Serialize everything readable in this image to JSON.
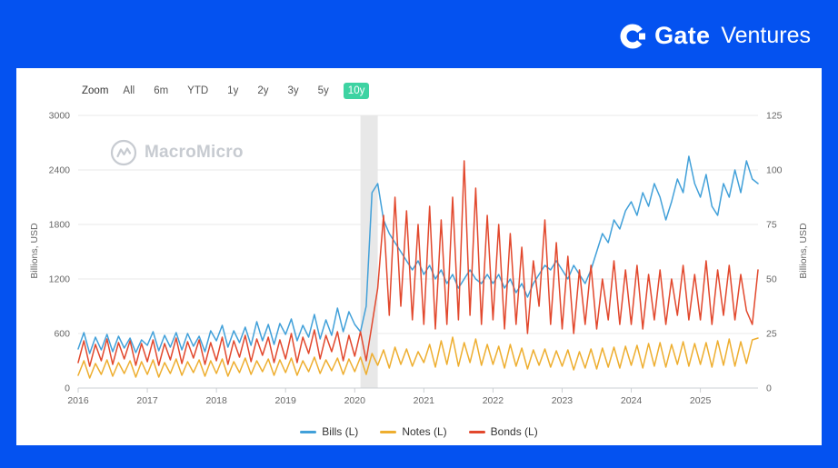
{
  "colors": {
    "brand_blue": "#0452f0",
    "active_zoom_green": "#3ed3a2",
    "grid": "#e8e8e8",
    "axis_text": "#666666"
  },
  "header": {
    "brand": "Gate",
    "brand_suffix": "Ventures"
  },
  "toolbar": {
    "zoom_label": "Zoom",
    "options": [
      "All",
      "6m",
      "YTD",
      "1y",
      "2y",
      "3y",
      "5y",
      "10y"
    ],
    "active": "10y"
  },
  "watermark": {
    "text": "MacroMicro"
  },
  "chart_data": {
    "type": "line",
    "title": "",
    "ylabel_left": "Billions, USD",
    "ylabel_right": "Billions, USD",
    "ylim_left": [
      0,
      3000
    ],
    "yticks_left": [
      0,
      600,
      1200,
      1800,
      2400,
      3000
    ],
    "ylim_right": [
      0,
      125
    ],
    "yticks_right": [
      0,
      25,
      50,
      75,
      100,
      125
    ],
    "x_frequency": "monthly",
    "x_start": "2016-01",
    "x_end": "2025-11",
    "x_tick_years": [
      2016,
      2017,
      2018,
      2019,
      2020,
      2021,
      2022,
      2023,
      2024,
      2025
    ],
    "grid": true,
    "legend_position": "bottom-center",
    "shaded_region": {
      "label": "2020 recession band",
      "from_month_index": 49,
      "to_month_index": 52,
      "color": "#e2e2e2"
    },
    "series": [
      {
        "id": "bills",
        "name": "Bills (L)",
        "color": "#41a0d9",
        "values": [
          430,
          610,
          380,
          560,
          420,
          590,
          400,
          570,
          440,
          550,
          390,
          530,
          470,
          620,
          410,
          580,
          450,
          610,
          420,
          600,
          460,
          570,
          400,
          630,
          520,
          690,
          450,
          630,
          500,
          670,
          470,
          730,
          520,
          700,
          480,
          710,
          590,
          760,
          520,
          690,
          560,
          810,
          540,
          750,
          580,
          880,
          620,
          840,
          700,
          620,
          900,
          2150,
          2250,
          1850,
          1700,
          1600,
          1500,
          1400,
          1300,
          1400,
          1250,
          1350,
          1200,
          1300,
          1150,
          1250,
          1100,
          1200,
          1300,
          1200,
          1150,
          1250,
          1150,
          1250,
          1100,
          1200,
          1050,
          1150,
          1000,
          1150,
          1250,
          1350,
          1300,
          1400,
          1300,
          1200,
          1350,
          1250,
          1150,
          1300,
          1500,
          1700,
          1600,
          1850,
          1750,
          1950,
          2050,
          1900,
          2150,
          2000,
          2250,
          2100,
          1850,
          2050,
          2300,
          2150,
          2550,
          2250,
          2100,
          2350,
          2000,
          1900,
          2250,
          2100,
          2400,
          2150,
          2500,
          2300,
          2250
        ]
      },
      {
        "id": "notes",
        "name": "Notes (L)",
        "color": "#eeae2f",
        "values": [
          140,
          300,
          110,
          270,
          150,
          310,
          130,
          280,
          160,
          300,
          120,
          290,
          150,
          310,
          120,
          280,
          160,
          320,
          140,
          290,
          170,
          310,
          130,
          300,
          160,
          320,
          130,
          290,
          170,
          330,
          150,
          300,
          180,
          320,
          140,
          310,
          170,
          330,
          140,
          300,
          180,
          340,
          160,
          310,
          190,
          330,
          150,
          320,
          180,
          340,
          150,
          380,
          250,
          420,
          220,
          450,
          260,
          430,
          240,
          400,
          280,
          480,
          230,
          520,
          260,
          560,
          240,
          500,
          280,
          540,
          250,
          480,
          260,
          460,
          220,
          480,
          240,
          440,
          210,
          420,
          250,
          430,
          230,
          410,
          240,
          420,
          200,
          400,
          220,
          430,
          210,
          440,
          230,
          450,
          220,
          460,
          250,
          470,
          220,
          490,
          240,
          500,
          230,
          480,
          260,
          510,
          240,
          490,
          260,
          500,
          230,
          520,
          250,
          540,
          240,
          510,
          270,
          530,
          550
        ]
      },
      {
        "id": "bonds",
        "name": "Bonds (L)",
        "color": "#e2482d",
        "values": [
          280,
          520,
          240,
          480,
          300,
          540,
          260,
          500,
          320,
          520,
          250,
          490,
          290,
          530,
          250,
          490,
          310,
          550,
          270,
          510,
          330,
          530,
          260,
          500,
          300,
          560,
          260,
          520,
          340,
          580,
          290,
          540,
          360,
          560,
          280,
          530,
          320,
          600,
          280,
          560,
          380,
          640,
          320,
          580,
          400,
          620,
          300,
          580,
          350,
          620,
          300,
          700,
          1100,
          1900,
          800,
          2100,
          900,
          1950,
          750,
          1800,
          700,
          2000,
          650,
          1850,
          700,
          2100,
          750,
          2500,
          800,
          2200,
          700,
          1900,
          750,
          1800,
          650,
          1700,
          700,
          1550,
          600,
          1400,
          900,
          1850,
          700,
          1600,
          650,
          1450,
          600,
          1300,
          700,
          1350,
          650,
          1200,
          750,
          1400,
          700,
          1300,
          700,
          1350,
          650,
          1250,
          750,
          1300,
          700,
          1200,
          800,
          1350,
          750,
          1250,
          750,
          1400,
          700,
          1300,
          800,
          1350,
          750,
          1250,
          850,
          700,
          1300
        ]
      }
    ]
  }
}
